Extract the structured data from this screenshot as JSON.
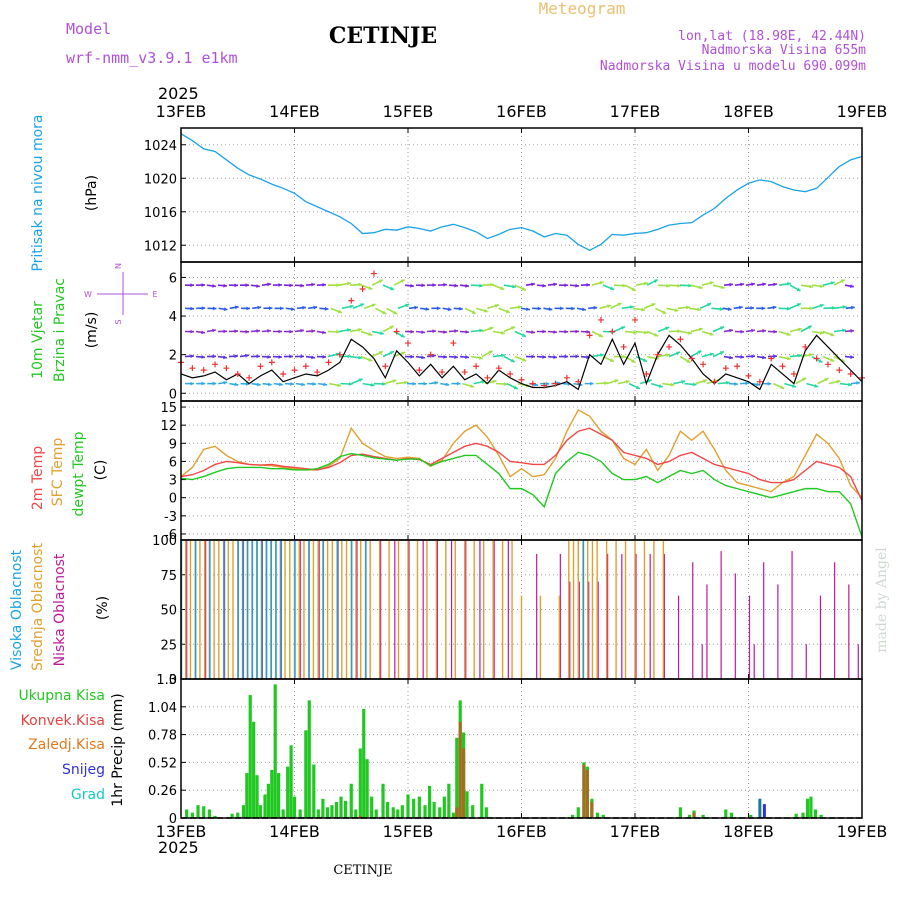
{
  "header": {
    "model_label": "Model",
    "model_name": "wrf-nmm_v3.9.1 e1km",
    "station_title": "CETINJE",
    "meteogram_label": "Meteogram",
    "lonlat": "lon,lat (18.98E, 42.44N)",
    "elevation": "Nadmorska Visina 655m",
    "model_elevation": "Nadmorska Visina u modelu 690.099m",
    "footer_station": "CETINJE",
    "watermark": "made by Angel"
  },
  "time_axis": {
    "year": "2025",
    "ticks": [
      "13FEB",
      "14FEB",
      "15FEB",
      "16FEB",
      "17FEB",
      "18FEB",
      "19FEB"
    ],
    "start_day": 13,
    "end_day": 19
  },
  "colors": {
    "pressure": "#1aa3e8",
    "temp2m": "#f04848",
    "sfc": "#e0a030",
    "dewpt": "#22c822",
    "high_cloud": "#1a9fe8",
    "mid_cloud": "#e0a030",
    "low_cloud": "#c0189a",
    "total_precip": "#22c822",
    "conv_precip": "#e84040",
    "frozen_precip": "#e07a20",
    "snow": "#3030e0",
    "hail": "#18c8c8",
    "wind_black": "#000000",
    "wind_red": "#f03030",
    "header_purple": "#b050d8",
    "header_gold": "#e8c070"
  },
  "chart_data": [
    {
      "type": "line",
      "name": "pressure",
      "ylabel_main": "Pritisak na nivou mora",
      "unit": "(hPa)",
      "ylim": [
        1010,
        1026
      ],
      "yticks": [
        1012,
        1016,
        1020,
        1024
      ],
      "grid": true,
      "x": [
        13.0,
        13.1,
        13.2,
        13.3,
        13.4,
        13.5,
        13.6,
        13.7,
        13.8,
        13.9,
        14.0,
        14.1,
        14.2,
        14.3,
        14.4,
        14.5,
        14.6,
        14.7,
        14.8,
        14.9,
        15.0,
        15.1,
        15.2,
        15.3,
        15.4,
        15.5,
        15.6,
        15.7,
        15.8,
        15.9,
        16.0,
        16.1,
        16.2,
        16.3,
        16.4,
        16.5,
        16.6,
        16.7,
        16.8,
        16.9,
        17.0,
        17.1,
        17.2,
        17.3,
        17.4,
        17.5,
        17.6,
        17.7,
        17.8,
        17.9,
        18.0,
        18.1,
        18.2,
        18.3,
        18.4,
        18.5,
        18.6,
        18.7,
        18.8,
        18.9,
        19.0
      ],
      "values": [
        1025.3,
        1024.5,
        1023.5,
        1023.2,
        1022.2,
        1021.2,
        1020.4,
        1019.9,
        1019.3,
        1018.8,
        1018.2,
        1017.2,
        1016.6,
        1016.0,
        1015.4,
        1014.6,
        1013.4,
        1013.5,
        1013.9,
        1013.8,
        1014.2,
        1014.0,
        1013.7,
        1014.2,
        1014.5,
        1014.1,
        1013.6,
        1012.8,
        1013.3,
        1013.9,
        1014.1,
        1013.7,
        1013.0,
        1013.4,
        1013.2,
        1012.1,
        1011.4,
        1012.1,
        1013.3,
        1013.2,
        1013.4,
        1013.5,
        1013.9,
        1014.4,
        1014.6,
        1014.7,
        1015.6,
        1016.4,
        1017.6,
        1018.6,
        1019.4,
        1019.8,
        1019.6,
        1019.0,
        1018.6,
        1018.4,
        1018.8,
        1020.1,
        1021.4,
        1022.2,
        1022.6
      ]
    },
    {
      "type": "line",
      "name": "wind",
      "ylabel_main": "10m Vjetar",
      "ylabel_sub": "Brzina i Pravac",
      "unit": "(m/s)",
      "compass": {
        "n": "N",
        "e": "E",
        "w": "W",
        "s": "S"
      },
      "ylim": [
        -0.4,
        6.8
      ],
      "yticks": [
        0,
        2,
        4,
        6
      ],
      "grid": true,
      "x": [
        13.0,
        13.1,
        13.2,
        13.3,
        13.4,
        13.5,
        13.6,
        13.7,
        13.8,
        13.9,
        14.0,
        14.1,
        14.2,
        14.3,
        14.4,
        14.5,
        14.6,
        14.7,
        14.8,
        14.9,
        15.0,
        15.1,
        15.2,
        15.3,
        15.4,
        15.5,
        15.6,
        15.7,
        15.8,
        15.9,
        16.0,
        16.1,
        16.2,
        16.3,
        16.4,
        16.5,
        16.6,
        16.7,
        16.8,
        16.9,
        17.0,
        17.1,
        17.2,
        17.3,
        17.4,
        17.5,
        17.6,
        17.7,
        17.8,
        17.9,
        18.0,
        18.1,
        18.2,
        18.3,
        18.4,
        18.5,
        18.6,
        18.7,
        18.8,
        18.9,
        19.0
      ],
      "series": [
        {
          "values": [
            1.0,
            0.8,
            0.9,
            1.1,
            0.7,
            1.0,
            0.5,
            0.9,
            1.2,
            0.6,
            0.8,
            1.0,
            0.9,
            1.2,
            1.6,
            2.8,
            2.4,
            1.8,
            0.8,
            2.2,
            1.6,
            0.9,
            1.5,
            0.8,
            1.4,
            0.7,
            1.0,
            0.5,
            1.2,
            0.8,
            0.5,
            0.3,
            0.3,
            0.4,
            0.6,
            0.2,
            2.0,
            1.5,
            2.8,
            1.5,
            2.6,
            0.5,
            2.0,
            3.0,
            2.5,
            1.8,
            1.0,
            0.5,
            1.0,
            0.8,
            0.6,
            0.2,
            1.5,
            1.0,
            0.5,
            2.2,
            3.0,
            2.4,
            1.8,
            1.2,
            0.6
          ]
        },
        {
          "values": [
            1.6,
            1.3,
            1.2,
            1.5,
            1.3,
            1.0,
            0.8,
            1.4,
            1.6,
            1.0,
            1.2,
            1.4,
            1.1,
            1.6,
            2.0,
            4.8,
            5.4,
            6.2,
            1.4,
            3.2,
            2.6,
            1.2,
            2.0,
            1.1,
            2.6,
            1.1,
            1.4,
            0.8,
            1.3,
            1.0,
            0.7,
            0.5,
            0.4,
            0.5,
            0.8,
            0.6,
            3.0,
            3.8,
            3.2,
            2.4,
            3.8,
            1.0,
            2.0,
            2.4,
            2.8,
            1.8,
            1.5,
            0.6,
            1.3,
            1.4,
            0.9,
            0.6,
            1.8,
            1.4,
            1.0,
            2.4,
            1.8,
            1.5,
            1.2,
            1.0,
            0.8
          ]
        }
      ],
      "arrow_rows": [
        5.6,
        4.4,
        3.2,
        1.9,
        0.5
      ],
      "arrow_spacing": [
        0.5,
        0.6,
        0.5,
        0.5,
        0.55
      ]
    },
    {
      "type": "line",
      "name": "temperature",
      "ylabel_main": "2m Temp",
      "ylabel_sub": "SFC Temp",
      "ylabel_third": "dewpt Temp",
      "unit": "(C)",
      "ylim": [
        -7,
        16
      ],
      "yticks": [
        -6,
        -3,
        0,
        3,
        6,
        9,
        12,
        15
      ],
      "grid": true,
      "x": [
        13.0,
        13.1,
        13.2,
        13.3,
        13.4,
        13.5,
        13.6,
        13.7,
        13.8,
        13.9,
        14.0,
        14.1,
        14.2,
        14.3,
        14.4,
        14.5,
        14.6,
        14.7,
        14.8,
        14.9,
        15.0,
        15.1,
        15.2,
        15.3,
        15.4,
        15.5,
        15.6,
        15.7,
        15.8,
        15.9,
        16.0,
        16.1,
        16.2,
        16.3,
        16.4,
        16.5,
        16.6,
        16.7,
        16.8,
        16.9,
        17.0,
        17.1,
        17.2,
        17.3,
        17.4,
        17.5,
        17.6,
        17.7,
        17.8,
        17.9,
        18.0,
        18.1,
        18.2,
        18.3,
        18.4,
        18.5,
        18.6,
        18.7,
        18.8,
        18.9,
        19.0
      ],
      "series": [
        {
          "values": [
            3.5,
            3.8,
            4.5,
            5.5,
            6.0,
            5.8,
            5.5,
            5.4,
            5.5,
            5.2,
            5.0,
            4.8,
            4.6,
            5.0,
            5.8,
            7.0,
            7.2,
            6.8,
            6.5,
            6.2,
            6.5,
            6.3,
            5.5,
            6.5,
            7.5,
            8.5,
            9.0,
            8.5,
            7.5,
            6.0,
            5.8,
            5.5,
            5.5,
            7.0,
            9.5,
            11.0,
            11.5,
            10.5,
            9.5,
            7.5,
            7.0,
            6.5,
            5.5,
            6.0,
            7.0,
            7.5,
            6.5,
            5.5,
            5.0,
            4.5,
            4.0,
            3.0,
            2.5,
            2.5,
            3.0,
            4.5,
            6.0,
            5.5,
            5.0,
            3.5,
            -0.5
          ]
        },
        {
          "values": [
            3.5,
            5.0,
            8.0,
            8.5,
            7.0,
            6.0,
            5.5,
            5.4,
            5.3,
            5.0,
            4.8,
            4.6,
            4.6,
            5.2,
            6.5,
            11.5,
            9.0,
            7.8,
            6.8,
            6.5,
            6.7,
            6.5,
            5.2,
            6.2,
            9.0,
            11.0,
            12.0,
            10.0,
            7.0,
            3.5,
            4.8,
            3.5,
            3.8,
            6.5,
            11.0,
            14.5,
            13.5,
            11.0,
            9.5,
            6.5,
            5.5,
            8.0,
            4.5,
            7.0,
            11.0,
            9.5,
            11.0,
            8.0,
            4.5,
            2.5,
            2.0,
            1.5,
            1.0,
            2.5,
            3.5,
            7.0,
            10.5,
            9.0,
            6.5,
            2.0,
            0.0
          ]
        },
        {
          "values": [
            3.2,
            3.0,
            3.5,
            4.2,
            4.8,
            5.0,
            5.0,
            5.0,
            4.8,
            4.8,
            4.6,
            4.6,
            4.8,
            5.5,
            6.8,
            7.3,
            7.0,
            6.6,
            6.4,
            6.2,
            6.4,
            6.4,
            5.3,
            6.0,
            6.5,
            7.0,
            7.0,
            5.5,
            4.0,
            1.5,
            1.5,
            0.5,
            -1.5,
            4.0,
            6.0,
            7.5,
            7.0,
            6.0,
            4.0,
            3.0,
            3.0,
            3.5,
            2.5,
            3.5,
            4.5,
            4.0,
            4.5,
            3.0,
            2.0,
            1.5,
            1.0,
            0.5,
            0.0,
            0.5,
            1.0,
            1.5,
            1.5,
            1.0,
            1.0,
            -1.0,
            -6.5
          ]
        }
      ]
    },
    {
      "type": "bar",
      "name": "cloud",
      "ylabel_main": "Visoka Oblacnost",
      "ylabel_sub": "Srednja Oblacnost",
      "ylabel_third": "Niska Oblacnost",
      "unit": "(%)",
      "ylim": [
        0,
        100
      ],
      "yticks": [
        0,
        25,
        50,
        75,
        100
      ],
      "grid": true,
      "bar_interval_hours": 1
    },
    {
      "type": "bar",
      "name": "precip",
      "ylabel": "1hr Precip (mm)",
      "legend": [
        "Ukupna Kisa",
        "Konvek.Kisa",
        "Zaledj.Kisa",
        "Snijeg",
        "Grad"
      ],
      "ylim": [
        0,
        1.3
      ],
      "yticks": [
        0,
        0.26,
        0.52,
        0.78,
        1.04,
        1.3
      ],
      "ytick_labels": [
        "0",
        "0.26",
        "0.52",
        "0.78",
        "1.04",
        "1.3"
      ],
      "grid": true,
      "bars": [
        {
          "x": 13.05,
          "total": 0.08,
          "conv": 0
        },
        {
          "x": 13.1,
          "total": 0.05,
          "conv": 0
        },
        {
          "x": 13.15,
          "total": 0.12,
          "conv": 0
        },
        {
          "x": 13.2,
          "total": 0.11,
          "conv": 0
        },
        {
          "x": 13.25,
          "total": 0.08,
          "conv": 0
        },
        {
          "x": 13.3,
          "total": 0.02,
          "conv": 0
        },
        {
          "x": 13.45,
          "total": 0.04,
          "conv": 0
        },
        {
          "x": 13.5,
          "total": 0.05,
          "conv": 0
        },
        {
          "x": 13.55,
          "total": 0.12,
          "conv": 0
        },
        {
          "x": 13.58,
          "total": 0.42,
          "conv": 0
        },
        {
          "x": 13.61,
          "total": 1.15,
          "conv": 0
        },
        {
          "x": 13.64,
          "total": 0.9,
          "conv": 0
        },
        {
          "x": 13.67,
          "total": 0.4,
          "conv": 0
        },
        {
          "x": 13.7,
          "total": 0.12,
          "conv": 0
        },
        {
          "x": 13.74,
          "total": 0.22,
          "conv": 0
        },
        {
          "x": 13.77,
          "total": 0.32,
          "conv": 0
        },
        {
          "x": 13.8,
          "total": 0.45,
          "conv": 0
        },
        {
          "x": 13.83,
          "total": 1.25,
          "conv": 0
        },
        {
          "x": 13.86,
          "total": 0.42,
          "conv": 0
        },
        {
          "x": 13.9,
          "total": 0.08,
          "conv": 0
        },
        {
          "x": 13.94,
          "total": 0.48,
          "conv": 0
        },
        {
          "x": 13.97,
          "total": 0.68,
          "conv": 0
        },
        {
          "x": 14.0,
          "total": 0.2,
          "conv": 0
        },
        {
          "x": 14.05,
          "total": 0.08,
          "conv": 0
        },
        {
          "x": 14.1,
          "total": 0.82,
          "conv": 0
        },
        {
          "x": 14.13,
          "total": 1.1,
          "conv": 0
        },
        {
          "x": 14.17,
          "total": 0.5,
          "conv": 0
        },
        {
          "x": 14.21,
          "total": 0.08,
          "conv": 0
        },
        {
          "x": 14.25,
          "total": 0.18,
          "conv": 0
        },
        {
          "x": 14.29,
          "total": 0.1,
          "conv": 0
        },
        {
          "x": 14.33,
          "total": 0.12,
          "conv": 0
        },
        {
          "x": 14.37,
          "total": 0.15,
          "conv": 0
        },
        {
          "x": 14.41,
          "total": 0.2,
          "conv": 0
        },
        {
          "x": 14.45,
          "total": 0.16,
          "conv": 0
        },
        {
          "x": 14.5,
          "total": 0.32,
          "conv": 0
        },
        {
          "x": 14.54,
          "total": 0.08,
          "conv": 0
        },
        {
          "x": 14.58,
          "total": 0.65,
          "conv": 0.02
        },
        {
          "x": 14.61,
          "total": 1.02,
          "conv": 0
        },
        {
          "x": 14.64,
          "total": 0.55,
          "conv": 0
        },
        {
          "x": 14.68,
          "total": 0.2,
          "conv": 0
        },
        {
          "x": 14.72,
          "total": 0.08,
          "conv": 0
        },
        {
          "x": 14.78,
          "total": 0.32,
          "conv": 0
        },
        {
          "x": 14.82,
          "total": 0.15,
          "conv": 0
        },
        {
          "x": 14.87,
          "total": 0.1,
          "conv": 0
        },
        {
          "x": 14.91,
          "total": 0.08,
          "conv": 0
        },
        {
          "x": 14.95,
          "total": 0.12,
          "conv": 0
        },
        {
          "x": 15.0,
          "total": 0.22,
          "conv": 0
        },
        {
          "x": 15.05,
          "total": 0.18,
          "conv": 0
        },
        {
          "x": 15.1,
          "total": 0.2,
          "conv": 0
        },
        {
          "x": 15.15,
          "total": 0.12,
          "conv": 0
        },
        {
          "x": 15.19,
          "total": 0.3,
          "conv": 0
        },
        {
          "x": 15.23,
          "total": 0.15,
          "conv": 0
        },
        {
          "x": 15.28,
          "total": 0.1,
          "conv": 0
        },
        {
          "x": 15.32,
          "total": 0.2,
          "conv": 0
        },
        {
          "x": 15.36,
          "total": 0.32,
          "conv": 0
        },
        {
          "x": 15.4,
          "total": 0.05,
          "conv": 0
        },
        {
          "x": 15.43,
          "total": 0.75,
          "conv": 0.1
        },
        {
          "x": 15.46,
          "total": 1.1,
          "conv": 0.9
        },
        {
          "x": 15.49,
          "total": 0.8,
          "conv": 0.65
        },
        {
          "x": 15.52,
          "total": 0.25,
          "conv": 0
        },
        {
          "x": 15.57,
          "total": 0.12,
          "conv": 0
        },
        {
          "x": 15.65,
          "total": 0.32,
          "conv": 0
        },
        {
          "x": 15.69,
          "total": 0.1,
          "conv": 0
        },
        {
          "x": 16.45,
          "total": 0.03,
          "conv": 0
        },
        {
          "x": 16.5,
          "total": 0.1,
          "conv": 0
        },
        {
          "x": 16.55,
          "total": 0.52,
          "conv": 0.5
        },
        {
          "x": 16.58,
          "total": 0.48,
          "conv": 0.45
        },
        {
          "x": 16.62,
          "total": 0.18,
          "conv": 0.15
        },
        {
          "x": 16.67,
          "total": 0.05,
          "conv": 0
        },
        {
          "x": 16.72,
          "total": 0.03,
          "conv": 0
        },
        {
          "x": 17.4,
          "total": 0.1,
          "conv": 0
        },
        {
          "x": 17.48,
          "total": 0.03,
          "conv": 0
        },
        {
          "x": 17.52,
          "total": 0.07,
          "conv": 0.05
        },
        {
          "x": 17.6,
          "total": 0.03,
          "conv": 0
        },
        {
          "x": 17.8,
          "total": 0.08,
          "conv": 0
        },
        {
          "x": 17.85,
          "total": 0.05,
          "conv": 0
        },
        {
          "x": 18.02,
          "total": 0.03,
          "conv": 0
        },
        {
          "x": 18.1,
          "total": 0.18,
          "conv": 0,
          "hail": 0.18
        },
        {
          "x": 18.14,
          "total": 0.13,
          "conv": 0,
          "snow": 0.13
        },
        {
          "x": 18.42,
          "total": 0.04,
          "conv": 0
        },
        {
          "x": 18.48,
          "total": 0.05,
          "conv": 0
        },
        {
          "x": 18.52,
          "total": 0.18,
          "conv": 0
        },
        {
          "x": 18.55,
          "total": 0.2,
          "conv": 0
        },
        {
          "x": 18.59,
          "total": 0.08,
          "conv": 0
        },
        {
          "x": 18.64,
          "total": 0.03,
          "conv": 0
        }
      ]
    }
  ]
}
